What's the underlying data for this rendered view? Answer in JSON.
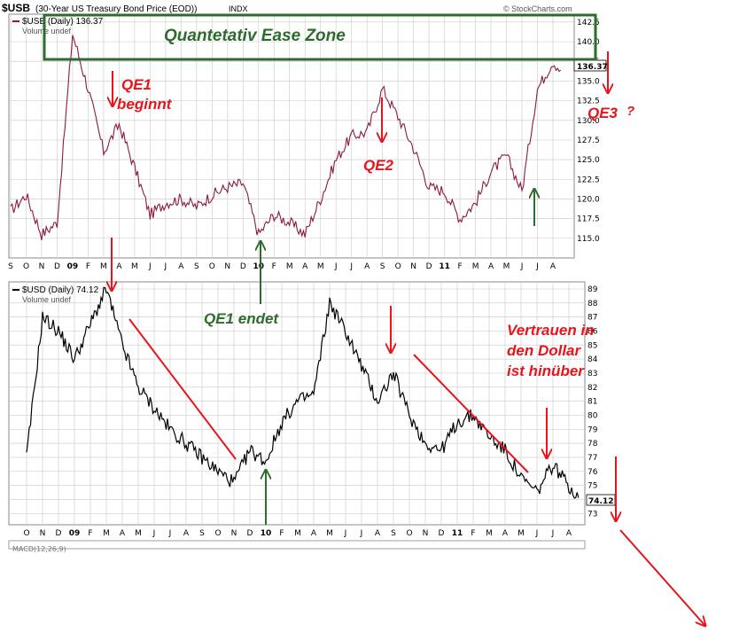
{
  "header": {
    "symbol": "$USB",
    "description": "(30-Year US Treasury Bond Price (EOD))",
    "exchange": "INDX",
    "credit": "© StockCharts.com"
  },
  "chart_data": [
    {
      "type": "line",
      "legend_label": "$USB (Daily) 136.37",
      "volume_label": "Volume undef",
      "last_value_label": "136.37",
      "y_ticks": [
        "115.0",
        "117.5",
        "120.0",
        "122.5",
        "125.0",
        "127.5",
        "130.0",
        "132.5",
        "135.0",
        "137.5",
        "140.0",
        "142.5"
      ],
      "x_ticks": [
        "S",
        "O",
        "N",
        "D",
        "09",
        "F",
        "M",
        "A",
        "M",
        "J",
        "J",
        "A",
        "S",
        "O",
        "N",
        "D",
        "10",
        "F",
        "M",
        "A",
        "M",
        "J",
        "J",
        "A",
        "S",
        "O",
        "N",
        "D",
        "11",
        "F",
        "M",
        "A",
        "M",
        "J",
        "J",
        "A"
      ],
      "ylim": [
        112.5,
        143.5
      ],
      "color": "#8b1a3c",
      "x": [
        0,
        1,
        2,
        3,
        4,
        5,
        6,
        7,
        8,
        9,
        10,
        11,
        12,
        13,
        14,
        15,
        16,
        17,
        18,
        19,
        20,
        21,
        22,
        23,
        24,
        25,
        26,
        27,
        28,
        29,
        30,
        31,
        32,
        33,
        34,
        35,
        35.5
      ],
      "values": [
        118.5,
        120.5,
        115.5,
        117.0,
        141.0,
        134.0,
        126.0,
        129.5,
        124.0,
        118.0,
        119.5,
        120.0,
        119.0,
        120.5,
        121.5,
        122.0,
        115.5,
        118.0,
        117.0,
        115.5,
        120.0,
        125.0,
        128.0,
        128.5,
        134.0,
        130.5,
        126.5,
        121.5,
        121.0,
        117.5,
        119.5,
        123.5,
        125.5,
        121.0,
        134.0,
        137.5,
        136.37
      ]
    },
    {
      "type": "line",
      "legend_label": "$USD (Daily) 74.12",
      "volume_label": "Volume undef",
      "last_value_label": "74.12",
      "y_ticks": [
        "73",
        "74",
        "75",
        "76",
        "77",
        "78",
        "79",
        "80",
        "81",
        "82",
        "83",
        "84",
        "85",
        "86",
        "87",
        "88",
        "89"
      ],
      "x_ticks": [
        "O",
        "N",
        "D",
        "09",
        "F",
        "M",
        "A",
        "M",
        "J",
        "J",
        "A",
        "S",
        "O",
        "N",
        "D",
        "10",
        "F",
        "M",
        "A",
        "M",
        "J",
        "J",
        "A",
        "S",
        "O",
        "N",
        "D",
        "11",
        "F",
        "M",
        "A",
        "M",
        "J",
        "J",
        "A"
      ],
      "ylim": [
        72.2,
        89.5
      ],
      "color": "#000000",
      "x": [
        0,
        1,
        2,
        3,
        4,
        5,
        6,
        7,
        8,
        9,
        10,
        11,
        12,
        13,
        14,
        15,
        16,
        17,
        18,
        19,
        20,
        21,
        22,
        23,
        24,
        25,
        26,
        27,
        28,
        29,
        30,
        31,
        32,
        33,
        34,
        34.6
      ],
      "values": [
        77.0,
        87.0,
        86.0,
        84.0,
        86.5,
        89.0,
        85.0,
        82.0,
        80.5,
        79.0,
        78.0,
        77.0,
        76.0,
        75.2,
        77.5,
        76.7,
        79.5,
        81.0,
        81.5,
        88.0,
        86.0,
        83.5,
        81.0,
        83.0,
        80.0,
        78.0,
        77.5,
        79.5,
        80.0,
        78.5,
        77.5,
        75.5,
        74.5,
        76.5,
        75.0,
        74.12
      ]
    }
  ],
  "footer_text": "MACD(12,26,9)",
  "annotations": {
    "zone": "Quantetativ Ease Zone",
    "qe1_begin_1": "QE1",
    "qe1_begin_2": "beginnt",
    "qe2": "QE2",
    "qe3": "QE3",
    "qe3_q": "?",
    "qe1_end": "QE1 endet",
    "trust_1": "Vertrauen in",
    "trust_2": "den Dollar",
    "trust_3": "ist hinüber"
  },
  "colors": {
    "annotation_red": "#e8141b",
    "annotation_green": "#2e6b2e",
    "grid": "#d0d0d0"
  }
}
